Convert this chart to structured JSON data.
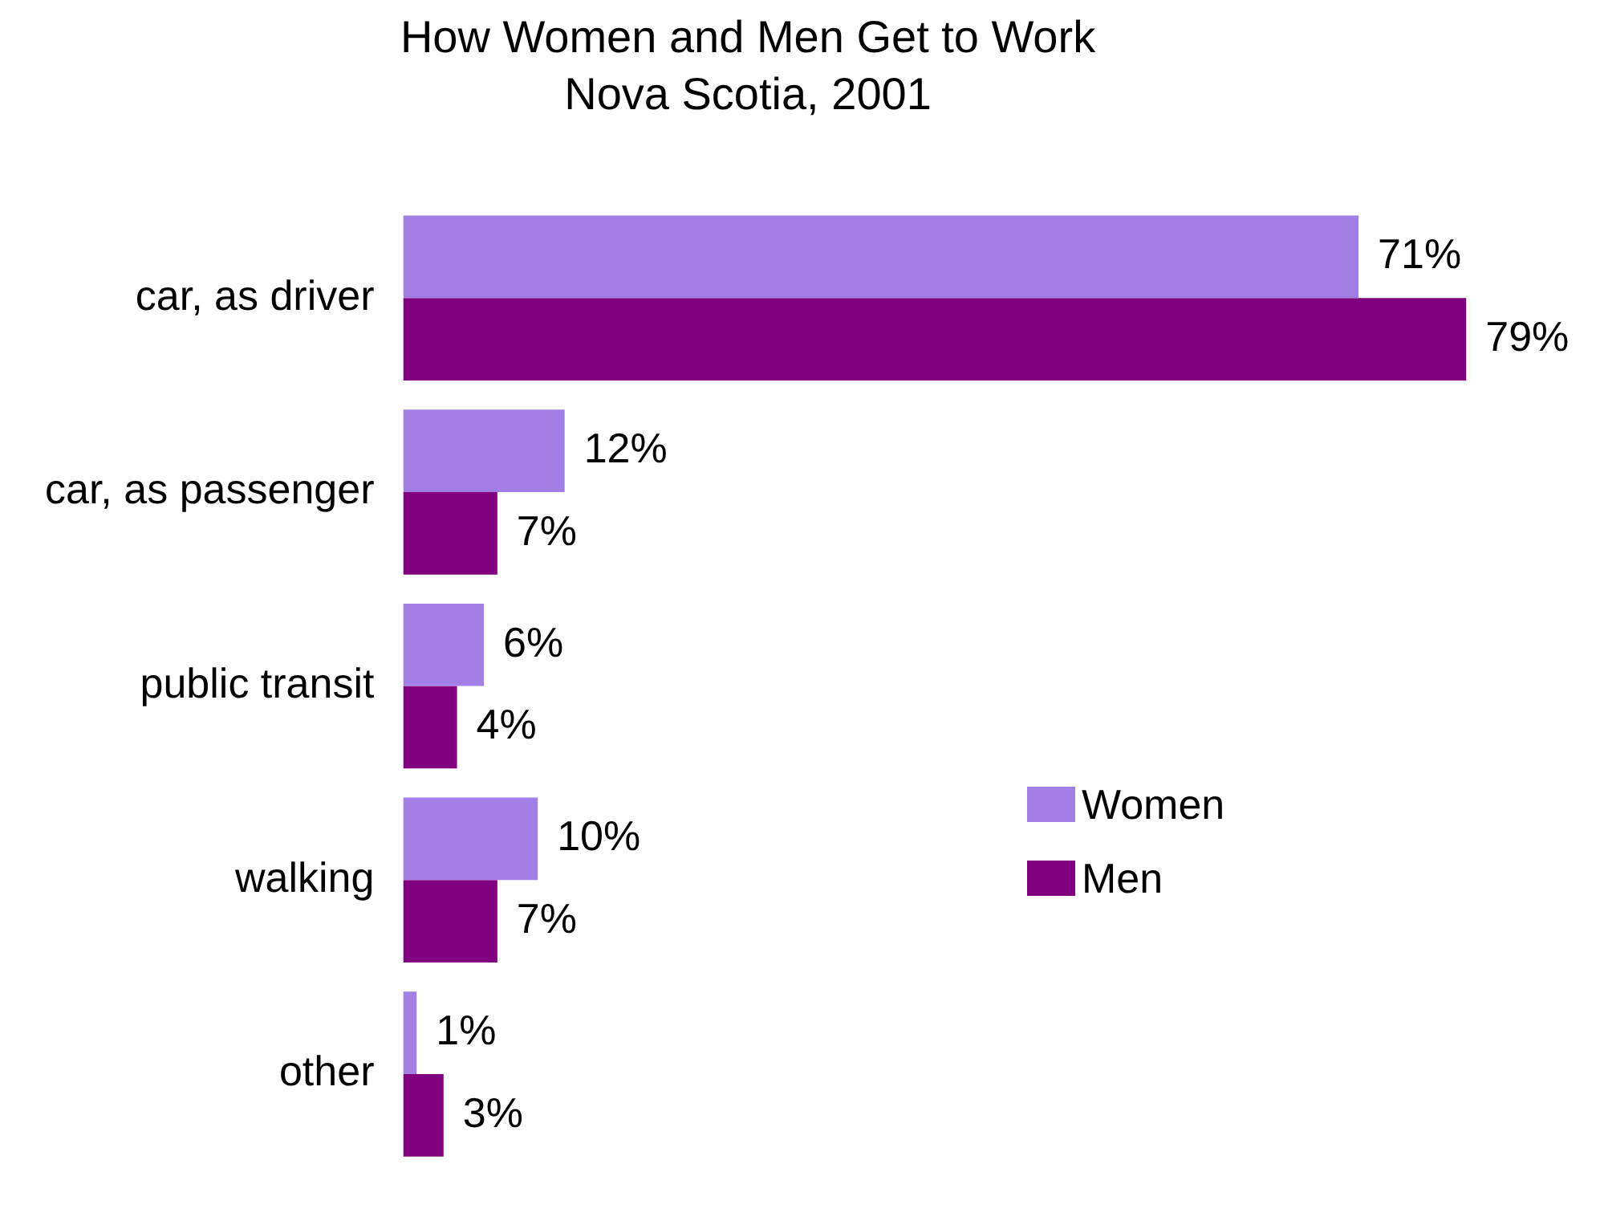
{
  "chart_data": {
    "type": "bar",
    "orientation": "horizontal",
    "title": "How Women and Men Get to Work",
    "subtitle": "Nova Scotia, 2001",
    "categories": [
      "car, as driver",
      "car, as passenger",
      "public transit",
      "walking",
      "other"
    ],
    "series": [
      {
        "name": "Women",
        "color": "#a27fe6",
        "values": [
          71,
          12,
          6,
          10,
          1
        ],
        "value_labels": [
          "71%",
          "12%",
          "6%",
          "10%",
          "1%"
        ]
      },
      {
        "name": "Men",
        "color": "#800080",
        "values": [
          79,
          7,
          4,
          7,
          3
        ],
        "value_labels": [
          "79%",
          "7%",
          "4%",
          "7%",
          "3%"
        ]
      }
    ],
    "grid": false,
    "legend": "right",
    "tick_labels": "y"
  }
}
